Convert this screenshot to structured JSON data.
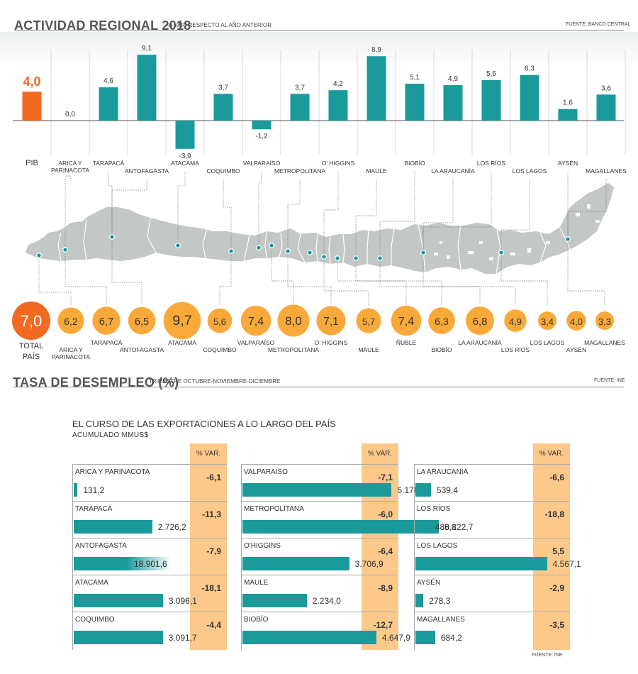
{
  "header_top": {
    "title": "ACTIVIDAD REGIONAL 2018",
    "subtitle": "% VAR. RESPECTO AL AÑO ANTERIOR",
    "source": "FUENTE: BANCO CENTRAL"
  },
  "header_mid": {
    "title": "TASA DE DESEMPLEO (%)",
    "subtitle": "TRIMESTRE OCTUBRE-NOVIEMBRE-DICIEMBRE",
    "source": "FUENTE: INE"
  },
  "colors": {
    "teal": "#1a9a9a",
    "orange_pib": "#f26a22",
    "orange_total": "#f26a22",
    "orange_circle": "#f9a93a",
    "var_bg": "#fcc98b",
    "map_gray": "#c3c7c6"
  },
  "chart_data": [
    {
      "type": "bar",
      "title": "ACTIVIDAD REGIONAL 2018",
      "subtitle": "% VAR. RESPECTO AL AÑO ANTERIOR",
      "categories": [
        "PIB",
        "ARICA Y PARINACOTA",
        "TARAPACÁ",
        "ANTOFAGASTA",
        "ATACAMA",
        "COQUIMBO",
        "VALPARAÍSO",
        "METROPOLITANA",
        "O' HIGGINS",
        "MAULE",
        "BIOBÍO",
        "LA ARAUCANÍA",
        "LOS RÍOS",
        "LOS LAGOS",
        "AYSÉN",
        "MAGALLANES"
      ],
      "values": [
        4.0,
        0.0,
        4.6,
        9.1,
        -3.9,
        3.7,
        -1.2,
        3.7,
        4.2,
        8.9,
        5.1,
        4.9,
        5.6,
        6.3,
        1.6,
        3.6
      ],
      "value_labels": [
        "4,0",
        "0,0",
        "4,6",
        "9,1",
        "-3,9",
        "3,7",
        "-1,2",
        "3,7",
        "4,2",
        "8,9",
        "5,1",
        "4,9",
        "5,6",
        "6,3",
        "1,6",
        "3,6"
      ],
      "highlight": "PIB",
      "grid": "vertical"
    },
    {
      "type": "bubble",
      "title": "TASA DE DESEMPLEO (%)",
      "subtitle": "TRIMESTRE OCTUBRE-NOVIEMBRE-DICIEMBRE",
      "categories": [
        "TOTAL PAÍS",
        "ARICA Y PARINACOTA",
        "TARAPACÁ",
        "ANTOFAGASTA",
        "ATACAMA",
        "COQUIMBO",
        "VALPARAÍSO",
        "METROPOLITANA",
        "O' HIGGINS",
        "MAULE",
        "ÑUBLE",
        "BIOBÍO",
        "LA ARAUCANÍA",
        "LOS RÍOS",
        "LOS LAGOS",
        "AYSÉN",
        "MAGALLANES"
      ],
      "values": [
        7.0,
        6.2,
        6.7,
        6.5,
        9.7,
        5.6,
        7.4,
        8.0,
        7.1,
        5.7,
        7.4,
        6.3,
        6.8,
        4.9,
        3.4,
        4.0,
        3.3
      ],
      "value_labels": [
        "7,0",
        "6,2",
        "6,7",
        "6,5",
        "9,7",
        "5,6",
        "7,4",
        "8,0",
        "7,1",
        "5,7",
        "7,4",
        "6,3",
        "6,8",
        "4,9",
        "3,4",
        "4,0",
        "3,3"
      ],
      "highlight": "TOTAL PAÍS"
    },
    {
      "type": "bar",
      "title": "EL CURSO DE LAS EXPORTACIONES A LO LARGO DEL PAÍS",
      "subtitle": "ACUMULADO MMUS$",
      "var_header": "% VAR.",
      "source": "FUENTE: INE",
      "columns": [
        [
          {
            "name": "ARICA Y PARINACOTA",
            "value": 131.2,
            "value_label": "131,2",
            "var": "-6,1"
          },
          {
            "name": "TARAPACÁ",
            "value": 2726.2,
            "value_label": "2.726,2",
            "var": "-11,3"
          },
          {
            "name": "ANTOFAGASTA",
            "value": 18901.6,
            "value_label": "18.901,6",
            "var": "-7,9"
          },
          {
            "name": "ATACAMA",
            "value": 3096.1,
            "value_label": "3.096,1",
            "var": "-18,1"
          },
          {
            "name": "COQUIMBO",
            "value": 3091.7,
            "value_label": "3.091,7",
            "var": "-4,4"
          }
        ],
        [
          {
            "name": "VALPARAÍSO",
            "value": 5178.9,
            "value_label": "5.178,9",
            "var": "-7,1"
          },
          {
            "name": "METROPOLITANA",
            "value": 6822.7,
            "value_label": "6.822,7",
            "var": "-6,0"
          },
          {
            "name": "O'HIGGINS",
            "value": 3706.9,
            "value_label": "3.706,9",
            "var": "-6,4"
          },
          {
            "name": "MAULE",
            "value": 2234.0,
            "value_label": "2.234,0",
            "var": "-8,9"
          },
          {
            "name": "BIOBÍO",
            "value": 4647.9,
            "value_label": "4.647,9",
            "var": "-12,7"
          }
        ],
        [
          {
            "name": "LA ARAUCANÍA",
            "value": 539.4,
            "value_label": "539,4",
            "var": "-6,6"
          },
          {
            "name": "LOS RÍOS",
            "value": 488.1,
            "value_label": "488,1",
            "var": "-18,8"
          },
          {
            "name": "LOS LAGOS",
            "value": 4567.1,
            "value_label": "4.567,1",
            "var": "5,5"
          },
          {
            "name": "AYSÉN",
            "value": 278.3,
            "value_label": "278,3",
            "var": "-2,9"
          },
          {
            "name": "MAGALLANES",
            "value": 684.2,
            "value_label": "684,2",
            "var": "-3,5"
          }
        ]
      ]
    }
  ]
}
